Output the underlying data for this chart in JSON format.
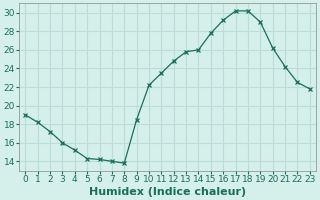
{
  "x": [
    0,
    1,
    2,
    3,
    4,
    5,
    6,
    7,
    8,
    9,
    10,
    11,
    12,
    13,
    14,
    15,
    16,
    17,
    18,
    19,
    20,
    21,
    22,
    23
  ],
  "y": [
    19.0,
    18.2,
    17.2,
    16.0,
    15.2,
    14.3,
    14.2,
    14.0,
    13.8,
    18.5,
    22.2,
    23.5,
    24.8,
    25.8,
    26.0,
    27.8,
    29.2,
    30.2,
    30.2,
    29.0,
    26.2,
    24.2,
    22.5,
    21.8
  ],
  "line_color": "#1a6e5e",
  "marker": "x",
  "marker_color": "#1a6e5e",
  "marker_size": 3,
  "xlabel": "Humidex (Indice chaleur)",
  "xlabel_fontsize": 8,
  "bg_color": "#d5efeb",
  "grid_color": "#bbddd8",
  "xlim": [
    -0.5,
    23.5
  ],
  "ylim": [
    13,
    31
  ],
  "yticks": [
    14,
    16,
    18,
    20,
    22,
    24,
    26,
    28,
    30
  ],
  "xticks": [
    0,
    1,
    2,
    3,
    4,
    5,
    6,
    7,
    8,
    9,
    10,
    11,
    12,
    13,
    14,
    15,
    16,
    17,
    18,
    19,
    20,
    21,
    22,
    23
  ],
  "tick_fontsize": 6.5,
  "tick_color": "#1a6e5e",
  "spine_color": "#888888"
}
